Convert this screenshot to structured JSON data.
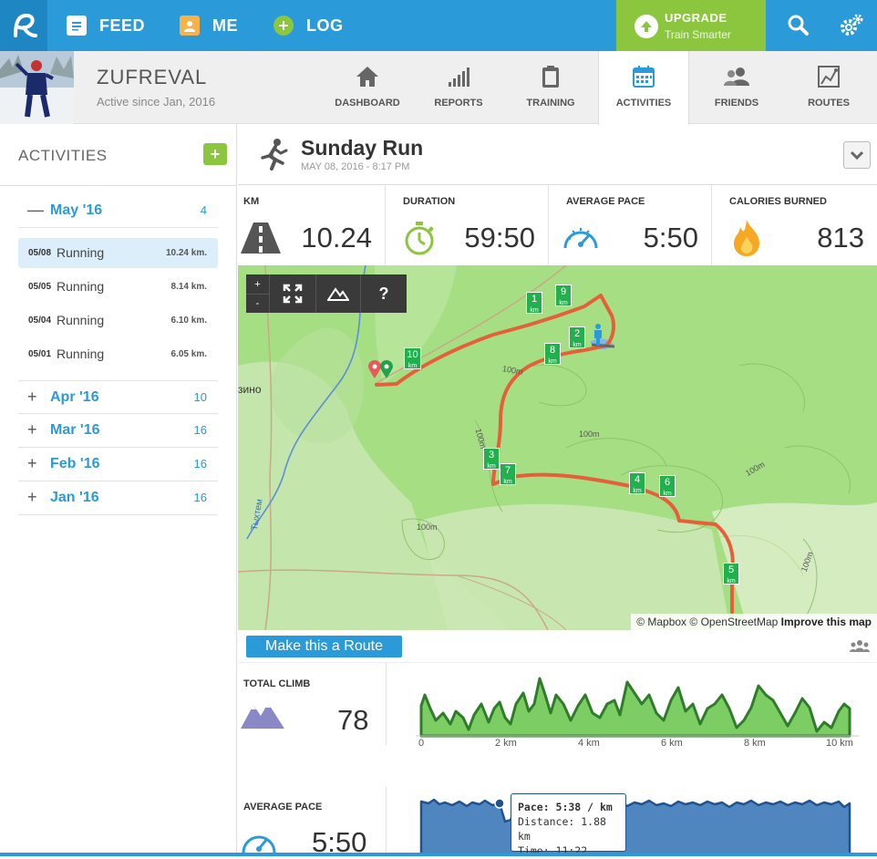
{
  "nav": {
    "feed": "FEED",
    "me": "ME",
    "log": "LOG",
    "upgrade_title": "UPGRADE",
    "upgrade_sub": "Train Smarter"
  },
  "profile": {
    "name": "ZUFREVAL",
    "since": "Active since Jan, 2016",
    "tabs": [
      "DASHBOARD",
      "REPORTS",
      "TRAINING",
      "ACTIVITIES",
      "FRIENDS",
      "ROUTES"
    ],
    "active_tab": "ACTIVITIES"
  },
  "sidebar": {
    "title": "ACTIVITIES",
    "add": "+",
    "months": [
      {
        "sym": "—",
        "label": "May '16",
        "count": "4"
      },
      {
        "sym": "+",
        "label": "Apr '16",
        "count": "10"
      },
      {
        "sym": "+",
        "label": "Mar '16",
        "count": "16"
      },
      {
        "sym": "+",
        "label": "Feb '16",
        "count": "16"
      },
      {
        "sym": "+",
        "label": "Jan '16",
        "count": "16"
      }
    ],
    "activities": [
      {
        "date": "05/08",
        "type": "Running",
        "dist": "10.24 km."
      },
      {
        "date": "05/05",
        "type": "Running",
        "dist": "8.14 km."
      },
      {
        "date": "05/04",
        "type": "Running",
        "dist": "6.10 km."
      },
      {
        "date": "05/01",
        "type": "Running",
        "dist": "6.05 km."
      }
    ]
  },
  "run": {
    "title": "Sunday Run",
    "date": "MAY 08, 2016  -  8:17 PM"
  },
  "stats": {
    "km_label": "KM",
    "km": "10.24",
    "duration_label": "DURATION",
    "duration": "59:50",
    "pace_label": "AVERAGE PACE",
    "pace": "5:50",
    "cal_label": "CALORIES BURNED",
    "cal": "813"
  },
  "map": {
    "zoom_in": "+",
    "zoom_out": "-",
    "help": "?",
    "attr_mapbox": "© Mapbox",
    "attr_osm": "© OpenStreetMap",
    "attr_improve": "Improve this map",
    "place_label": "зино",
    "river_label": "Тыхтем",
    "contour_label": "100m",
    "markers": [
      "1",
      "2",
      "3",
      "4",
      "5",
      "6",
      "7",
      "8",
      "9",
      "10"
    ],
    "marker_unit": "km"
  },
  "route_button": "Make this a Route",
  "climb": {
    "label": "TOTAL CLIMB",
    "value": "78",
    "ticks": [
      "0",
      "2 km",
      "4 km",
      "6 km",
      "8 km",
      "10 km"
    ]
  },
  "avg_pace": {
    "label": "AVERAGE PACE",
    "value": "5:50",
    "tooltip_pace": "Pace: 5:38 / km",
    "tooltip_distance": "Distance: 1.88 km",
    "tooltip_time": "Time: 11:22"
  },
  "colors": {
    "brand_blue": "#2a9ad8",
    "upgrade_green": "#8cc63f",
    "route_red": "#e5603a",
    "elev_green": "#66bb55",
    "pace_blue": "#3d79b5"
  }
}
